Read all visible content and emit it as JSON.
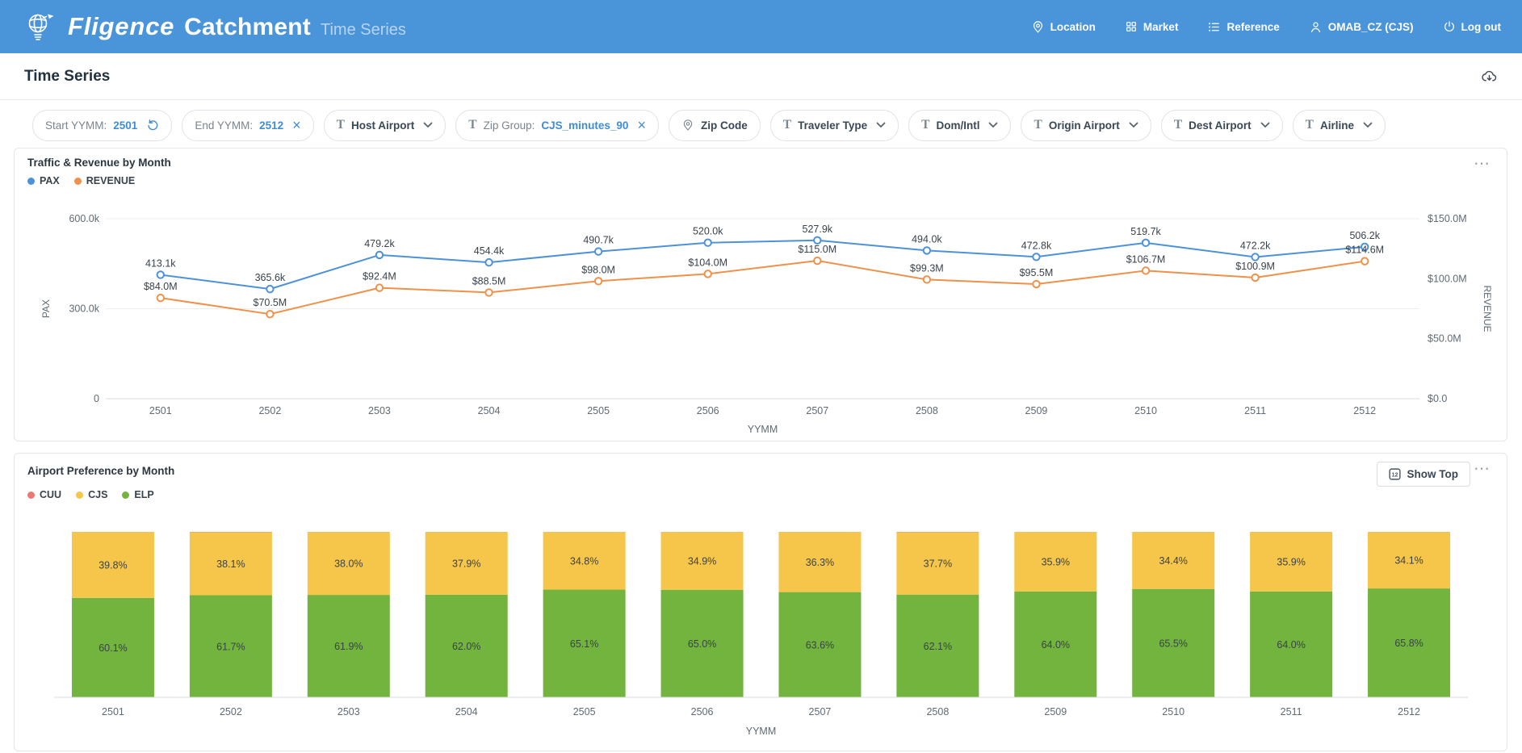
{
  "header": {
    "brand_script": "Fligence",
    "brand_bold": "Catchment",
    "brand_sub": "Time Series",
    "nav": [
      {
        "label": "Location",
        "icon": "location-pin-icon"
      },
      {
        "label": "Market",
        "icon": "grid-icon"
      },
      {
        "label": "Reference",
        "icon": "list-icon"
      },
      {
        "label": "OMAB_CZ (CJS)",
        "icon": "user-icon"
      },
      {
        "label": "Log out",
        "icon": "power-icon"
      }
    ]
  },
  "title_bar": {
    "title": "Time Series",
    "action_icon": "cloud-download-icon"
  },
  "filters": [
    {
      "kind": "value",
      "label": "Start YYMM:",
      "value": "2501",
      "action": "reset"
    },
    {
      "kind": "value",
      "label": "End YYMM:",
      "value": "2512",
      "action": "close"
    },
    {
      "kind": "dropdown",
      "icon": "T",
      "label": "Host Airport",
      "action": "chevron"
    },
    {
      "kind": "value",
      "icon": "T",
      "label": "Zip Group:",
      "value": "CJS_minutes_90",
      "action": "close"
    },
    {
      "kind": "dropdown",
      "icon": "pin",
      "label": "Zip Code"
    },
    {
      "kind": "dropdown",
      "icon": "T",
      "label": "Traveler Type",
      "action": "chevron"
    },
    {
      "kind": "dropdown",
      "icon": "T",
      "label": "Dom/Intl",
      "action": "chevron"
    },
    {
      "kind": "dropdown",
      "icon": "T",
      "label": "Origin Airport",
      "action": "chevron"
    },
    {
      "kind": "dropdown",
      "icon": "T",
      "label": "Dest Airport",
      "action": "chevron"
    },
    {
      "kind": "dropdown",
      "icon": "T",
      "label": "Airline",
      "action": "chevron"
    }
  ],
  "panels": [
    {
      "more_icon": "⋯"
    },
    {
      "more_icon": "⋯",
      "show_top_label": "Show Top",
      "show_top_icon": "boxed-12-icon"
    }
  ],
  "chart_data": [
    {
      "type": "line",
      "title": "Traffic & Revenue by Month",
      "categories": [
        "2501",
        "2502",
        "2503",
        "2504",
        "2505",
        "2506",
        "2507",
        "2508",
        "2509",
        "2510",
        "2511",
        "2512"
      ],
      "xlabel": "YYMM",
      "grid": true,
      "legend_position": "top-left",
      "series": [
        {
          "name": "PAX",
          "axis": "left",
          "color": "#4d92d9",
          "unit": "k",
          "values": [
            413.1,
            365.6,
            479.2,
            454.4,
            490.7,
            520.0,
            527.9,
            494.0,
            472.8,
            519.7,
            472.2,
            506.2
          ]
        },
        {
          "name": "REVENUE",
          "axis": "right",
          "color": "#f0914b",
          "unit": "$M",
          "values": [
            84.0,
            70.5,
            92.4,
            88.5,
            98.0,
            104.0,
            115.0,
            99.3,
            95.5,
            106.7,
            100.9,
            114.6
          ]
        }
      ],
      "left_axis": {
        "title": "PAX",
        "min": 0,
        "max": 600,
        "ticks": [
          {
            "v": 600,
            "label": "600.0k"
          },
          {
            "v": 300,
            "label": "300.0k"
          },
          {
            "v": 0,
            "label": "0"
          }
        ]
      },
      "right_axis": {
        "title": "REVENUE",
        "min": 0,
        "max": 150,
        "ticks": [
          {
            "v": 150,
            "label": "$150.0M"
          },
          {
            "v": 100,
            "label": "$100.0M"
          },
          {
            "v": 50,
            "label": "$50.0M"
          },
          {
            "v": 0,
            "label": "$0.0"
          }
        ]
      }
    },
    {
      "type": "stacked-bar",
      "title": "Airport Preference by Month",
      "categories": [
        "2501",
        "2502",
        "2503",
        "2504",
        "2505",
        "2506",
        "2507",
        "2508",
        "2509",
        "2510",
        "2511",
        "2512"
      ],
      "xlabel": "YYMM",
      "ylim": [
        0,
        100
      ],
      "legend_position": "top-left",
      "series": [
        {
          "name": "CUU",
          "color": "#ea7a73",
          "show_labels": false,
          "values": [
            0.1,
            0.2,
            0.1,
            0.1,
            0.1,
            0.1,
            0.1,
            0.2,
            0.1,
            0.1,
            0.1,
            0.1
          ]
        },
        {
          "name": "CJS",
          "color": "#f6c64a",
          "show_labels": true,
          "values": [
            39.8,
            38.1,
            38.0,
            37.9,
            34.8,
            34.9,
            36.3,
            37.7,
            35.9,
            34.4,
            35.9,
            34.1
          ]
        },
        {
          "name": "ELP",
          "color": "#72b43e",
          "show_labels": true,
          "values": [
            60.1,
            61.7,
            61.9,
            62.0,
            65.1,
            65.0,
            63.6,
            62.1,
            64.0,
            65.5,
            64.0,
            65.8
          ]
        }
      ]
    }
  ]
}
